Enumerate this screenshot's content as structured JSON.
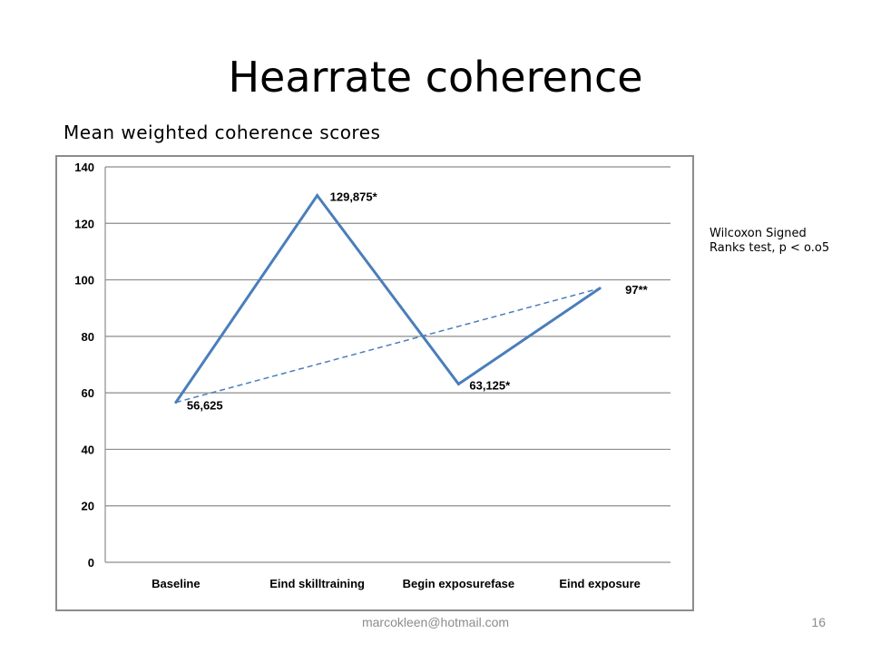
{
  "slide": {
    "title": "Hearrate coherence",
    "subtitle": "Mean weighted coherence scores",
    "note": "Wilcoxon Signed Ranks test, p < o.o5",
    "footer_email": "marcokleen@hotmail.com",
    "page_number": "16"
  },
  "chart_data": {
    "type": "line",
    "title": "",
    "xlabel": "",
    "ylabel": "",
    "categories": [
      "Baseline",
      "Eind skilltraining",
      "Begin exposurefase",
      "Eind exposure"
    ],
    "series": [
      {
        "values": [
          56.625,
          129.875,
          63.125,
          97
        ],
        "labels": [
          "56,625",
          "129,875*",
          "63,125*",
          "97**"
        ],
        "color": "#4a7ebb"
      }
    ],
    "trendline": {
      "from": 56.625,
      "to": 97,
      "style": "dashed",
      "color": "#4a7ebb"
    },
    "ylim": [
      0,
      140
    ],
    "yticks": [
      0,
      20,
      40,
      60,
      80,
      100,
      120,
      140
    ],
    "grid": true,
    "legend": "none"
  }
}
